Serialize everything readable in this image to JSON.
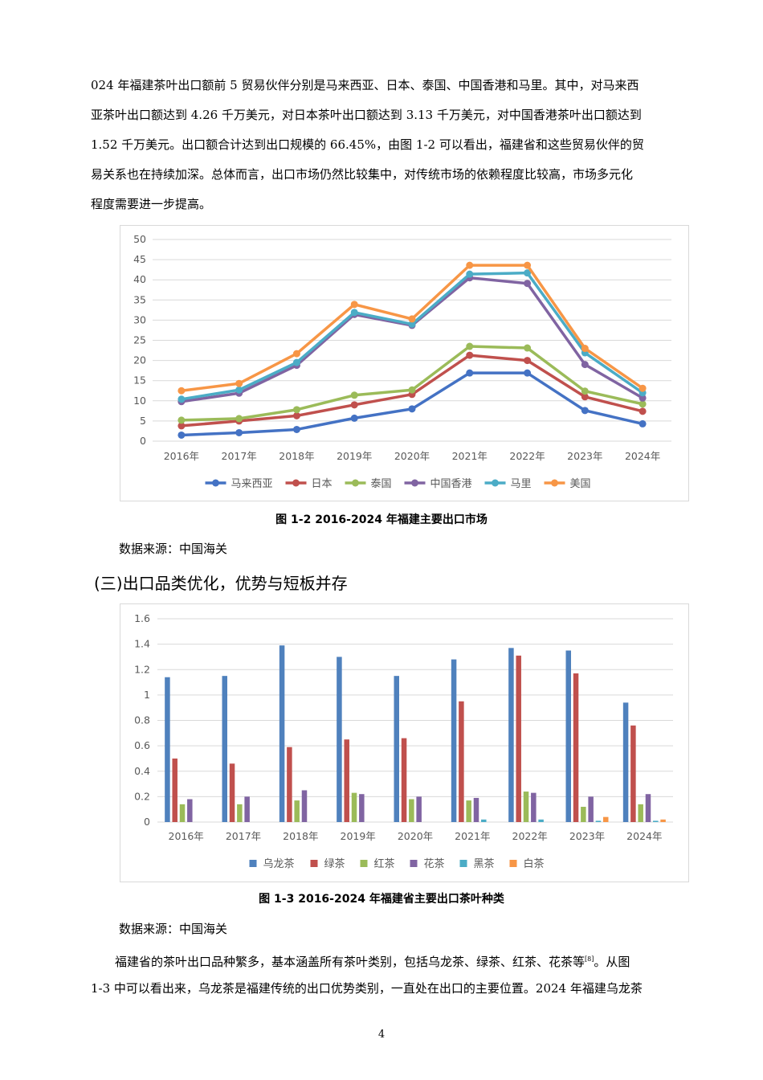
{
  "paragraph_top": [
    "024 年福建茶叶出口额前 5 贸易伙伴分别是马来西亚、日本、泰国、中国香港和马里。其中，对马来西",
    "亚茶叶出口额达到 4.26 千万美元，对日本茶叶出口额达到 3.13 千万美元，对中国香港茶叶出口额达到",
    "1.52 千万美元。出口额合计达到出口规模的 66.45%，由图 1-2 可以看出，福建省和这些贸易伙伴的贸",
    "易关系也在持续加深。总体而言，出口市场仍然比较集中，对传统市场的依赖程度比较高，市场多元化",
    "程度需要进一步提高。"
  ],
  "figure1": {
    "caption": "图 1-2 2016-2024 年福建主要出口市场",
    "source": "数据来源：中国海关"
  },
  "section_heading": "(三)出口品类优化，优势与短板并存",
  "figure2": {
    "caption": "图 1-3 2016-2024 年福建省主要出口茶叶种类",
    "source": "数据来源：中国海关"
  },
  "paragraph_bottom": {
    "line1_main": "福建省的茶叶出口品种繁多，基本涵盖所有茶叶类别，包括乌龙茶、绿茶、红茶、花茶等",
    "line1_ref": "[8]",
    "line1_tail": "。从图",
    "line2": "1-3 中可以看出来，乌龙茶是福建传统的出口优势类别，一直处在出口的主要位置。2024 年福建乌龙茶"
  },
  "page_number": "4",
  "chart_data": [
    {
      "type": "line",
      "categories": [
        "2016年",
        "2017年",
        "2018年",
        "2019年",
        "2020年",
        "2021年",
        "2022年",
        "2023年",
        "2024年"
      ],
      "ylim": [
        0,
        50
      ],
      "yticks": [
        0,
        5,
        10,
        15,
        20,
        25,
        30,
        35,
        40,
        45,
        50
      ],
      "grid": true,
      "legend": "bottom",
      "series": [
        {
          "name": "马来西亚",
          "color": "#4472c4",
          "values": [
            1.5,
            2.1,
            2.9,
            5.7,
            8.0,
            16.9,
            16.9,
            7.6,
            4.3
          ]
        },
        {
          "name": "日本",
          "color": "#c0504d",
          "values": [
            3.8,
            5.0,
            6.3,
            9.0,
            11.6,
            21.3,
            20.0,
            11.0,
            7.4
          ]
        },
        {
          "name": "泰国",
          "color": "#9bbb59",
          "values": [
            5.2,
            5.6,
            7.8,
            11.4,
            12.7,
            23.5,
            23.1,
            12.4,
            9.2
          ]
        },
        {
          "name": "中国香港",
          "color": "#8064a2",
          "values": [
            9.8,
            11.9,
            18.8,
            31.4,
            28.7,
            40.5,
            39.1,
            19.0,
            10.7
          ]
        },
        {
          "name": "马里",
          "color": "#4bacc6",
          "values": [
            10.4,
            12.7,
            19.5,
            31.9,
            29.0,
            41.4,
            41.7,
            21.9,
            12.0
          ]
        },
        {
          "name": "美国",
          "color": "#f79646",
          "values": [
            12.5,
            14.3,
            21.7,
            33.9,
            30.3,
            43.6,
            43.6,
            23.0,
            13.1
          ]
        }
      ]
    },
    {
      "type": "bar",
      "categories": [
        "2016年",
        "2017年",
        "2018年",
        "2019年",
        "2020年",
        "2021年",
        "2022年",
        "2023年",
        "2024年"
      ],
      "ylim": [
        0,
        1.6
      ],
      "yticks": [
        "0",
        "0.2",
        "0.4",
        "0.6",
        "0.8",
        "1",
        "1.2",
        "1.4",
        "1.6"
      ],
      "grid": true,
      "legend": "bottom",
      "series": [
        {
          "name": "乌龙茶",
          "color": "#4f81bd",
          "values": [
            1.14,
            1.15,
            1.39,
            1.3,
            1.15,
            1.28,
            1.37,
            1.35,
            0.94
          ]
        },
        {
          "name": "绿茶",
          "color": "#c0504d",
          "values": [
            0.5,
            0.46,
            0.59,
            0.65,
            0.66,
            0.95,
            1.31,
            1.17,
            0.76
          ]
        },
        {
          "name": "红茶",
          "color": "#9bbb59",
          "values": [
            0.14,
            0.14,
            0.17,
            0.23,
            0.18,
            0.17,
            0.24,
            0.12,
            0.14
          ]
        },
        {
          "name": "花茶",
          "color": "#8064a2",
          "values": [
            0.18,
            0.2,
            0.25,
            0.22,
            0.2,
            0.19,
            0.23,
            0.2,
            0.22
          ]
        },
        {
          "name": "黑茶",
          "color": "#4bacc6",
          "values": [
            0,
            0,
            0,
            0,
            0,
            0.02,
            0.02,
            0.01,
            0.01
          ]
        },
        {
          "name": "白茶",
          "color": "#f79646",
          "values": [
            0,
            0,
            0,
            0,
            0,
            0,
            0,
            0.04,
            0.02
          ]
        }
      ]
    }
  ]
}
